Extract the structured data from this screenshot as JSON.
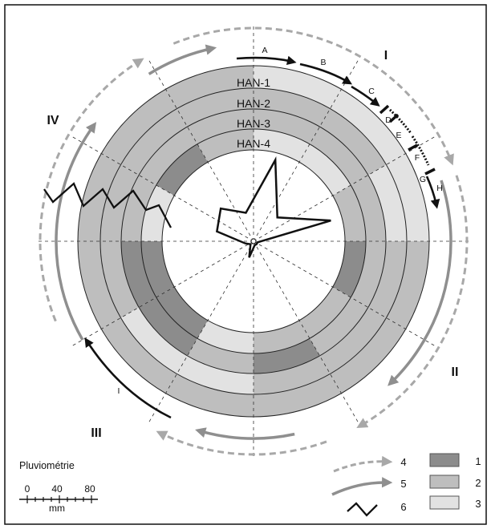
{
  "colors": {
    "dark": "#8c8c8c",
    "medium": "#bebebe",
    "light": "#e2e2e2",
    "stroke": "#1a1a1a",
    "arrow_gray": "#8f8f8f",
    "arrow_dashed": "#a8a8a8"
  },
  "rings": [
    {
      "label": "HAN-1",
      "shades": [
        "light",
        "light",
        "light",
        "medium",
        "medium",
        "medium",
        "medium",
        "medium",
        "medium",
        "medium",
        "medium",
        "medium"
      ]
    },
    {
      "label": "HAN-2",
      "shades": [
        "medium",
        "medium",
        "light",
        "medium",
        "medium",
        "medium",
        "light",
        "light",
        "medium",
        "medium",
        "medium",
        "medium"
      ]
    },
    {
      "label": "HAN-3",
      "shades": [
        "medium",
        "medium",
        "medium",
        "medium",
        "medium",
        "dark",
        "medium",
        "dark",
        "dark",
        "medium",
        "medium",
        "medium"
      ]
    },
    {
      "label": "HAN-4",
      "shades": [
        "light",
        "light",
        "medium",
        "dark",
        "medium",
        "medium",
        "light",
        "dark",
        "dark",
        "light",
        "dark",
        "medium"
      ]
    }
  ],
  "quadrants": {
    "q1": "I",
    "q2": "II",
    "q3": "III",
    "q4": "IV"
  },
  "phase_letters": [
    "A",
    "B",
    "C",
    "D",
    "E",
    "F",
    "G",
    "H"
  ],
  "arc_III_label": "I",
  "rose_values": [
    1.0,
    0.4,
    0.95,
    0.05,
    0.05,
    0.05,
    0.2,
    0.05,
    0.1,
    0.45,
    0.55,
    0.35
  ],
  "legend": {
    "swatches": [
      {
        "number": "1",
        "shade": "dark"
      },
      {
        "number": "2",
        "shade": "medium"
      },
      {
        "number": "3",
        "shade": "light"
      }
    ],
    "symbols": [
      {
        "number": "4",
        "kind": "dashed-arrow"
      },
      {
        "number": "5",
        "kind": "solid-arrow"
      },
      {
        "number": "6",
        "kind": "zigzag"
      }
    ]
  },
  "scale": {
    "title": "Pluviométrie",
    "ticks": [
      "0",
      "40",
      "80"
    ],
    "unit": "mm"
  }
}
